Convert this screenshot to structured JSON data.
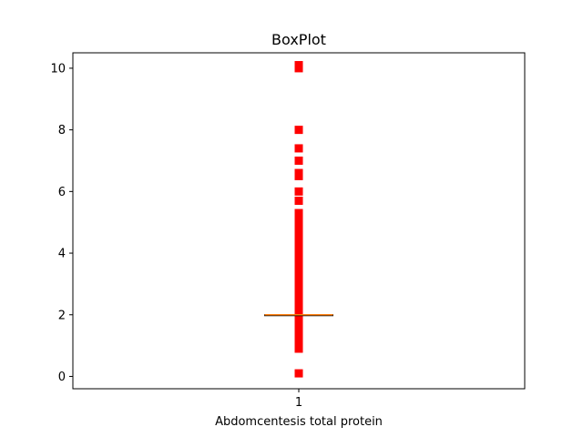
{
  "chart_data": {
    "type": "box",
    "title": "BoxPlot",
    "xlabel": "Abdomcentesis total protein",
    "ylabel": "",
    "categories": [
      "1"
    ],
    "x_ticks": [
      "1"
    ],
    "y_ticks": [
      0,
      2,
      4,
      6,
      8,
      10
    ],
    "ylim": [
      -0.4,
      10.5
    ],
    "grid": false,
    "box": {
      "category": "1",
      "q1": 2.0,
      "median": 2.0,
      "q3": 2.0,
      "whisker_low": 2.0,
      "whisker_high": 2.0
    },
    "outliers": [
      0.1,
      0.9,
      1.0,
      1.1,
      1.2,
      1.3,
      1.4,
      1.5,
      1.6,
      1.7,
      1.8,
      1.9,
      2.1,
      2.2,
      2.3,
      2.4,
      2.5,
      2.6,
      2.7,
      2.8,
      2.9,
      3.0,
      3.1,
      3.2,
      3.3,
      3.4,
      3.5,
      3.6,
      3.7,
      3.8,
      3.9,
      4.0,
      4.1,
      4.2,
      4.3,
      4.4,
      4.5,
      4.6,
      4.7,
      4.8,
      4.9,
      5.0,
      5.1,
      5.2,
      5.3,
      5.7,
      6.0,
      6.5,
      6.6,
      7.0,
      7.4,
      8.0,
      10.0,
      10.1
    ],
    "colors": {
      "outlier": "#ff0000",
      "median": "#ff7f0e",
      "box": "#000000",
      "axis": "#000000"
    }
  }
}
